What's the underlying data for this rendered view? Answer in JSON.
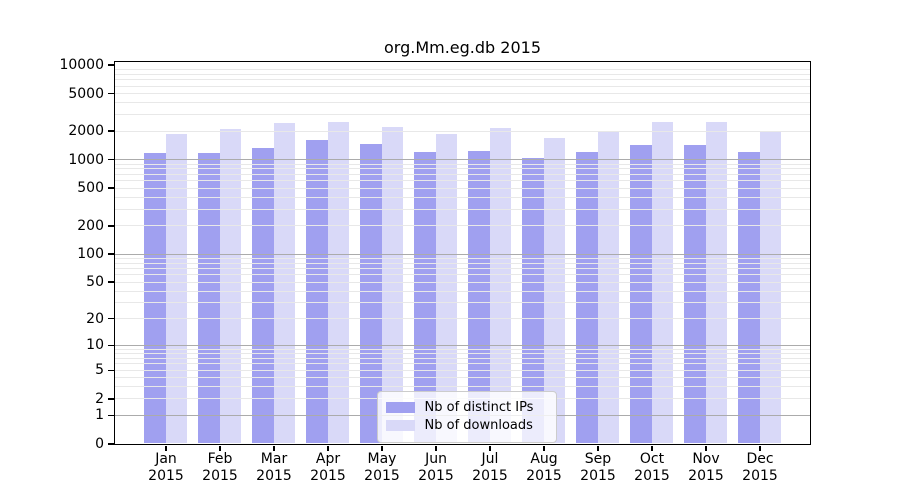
{
  "chart_data": {
    "type": "bar",
    "title": "org.Mm.eg.db 2015",
    "xlabel": "",
    "ylabel": "",
    "scale": "log1p",
    "ylim": [
      0,
      10000
    ],
    "grid": "on",
    "legend_position": "bottom-center",
    "y_ticks": [
      0,
      1,
      2,
      5,
      10,
      20,
      50,
      100,
      200,
      500,
      1000,
      2000,
      5000,
      10000
    ],
    "months": [
      "Jan",
      "Feb",
      "Mar",
      "Apr",
      "May",
      "Jun",
      "Jul",
      "Aug",
      "Sep",
      "Oct",
      "Nov",
      "Dec"
    ],
    "year": "2015",
    "series": [
      {
        "name": "Nb of distinct IPs",
        "color": "#a0a0f0",
        "values": [
          1150,
          1150,
          1300,
          1580,
          1465,
          1205,
          1215,
          1020,
          1180,
          1430,
          1430,
          1180
        ]
      },
      {
        "name": "Nb of downloads",
        "color": "#d9d9f8",
        "values": [
          1860,
          2060,
          2440,
          2500,
          2215,
          1825,
          2160,
          1695,
          1915,
          2500,
          2445,
          2000
        ]
      }
    ]
  },
  "colors": {
    "background": "#ffffff",
    "axis_frame": "#000000",
    "grid_minor": "#e8e8e8",
    "grid_major": "#ababab",
    "text": "#000000",
    "legend_border": "#cccccc"
  }
}
